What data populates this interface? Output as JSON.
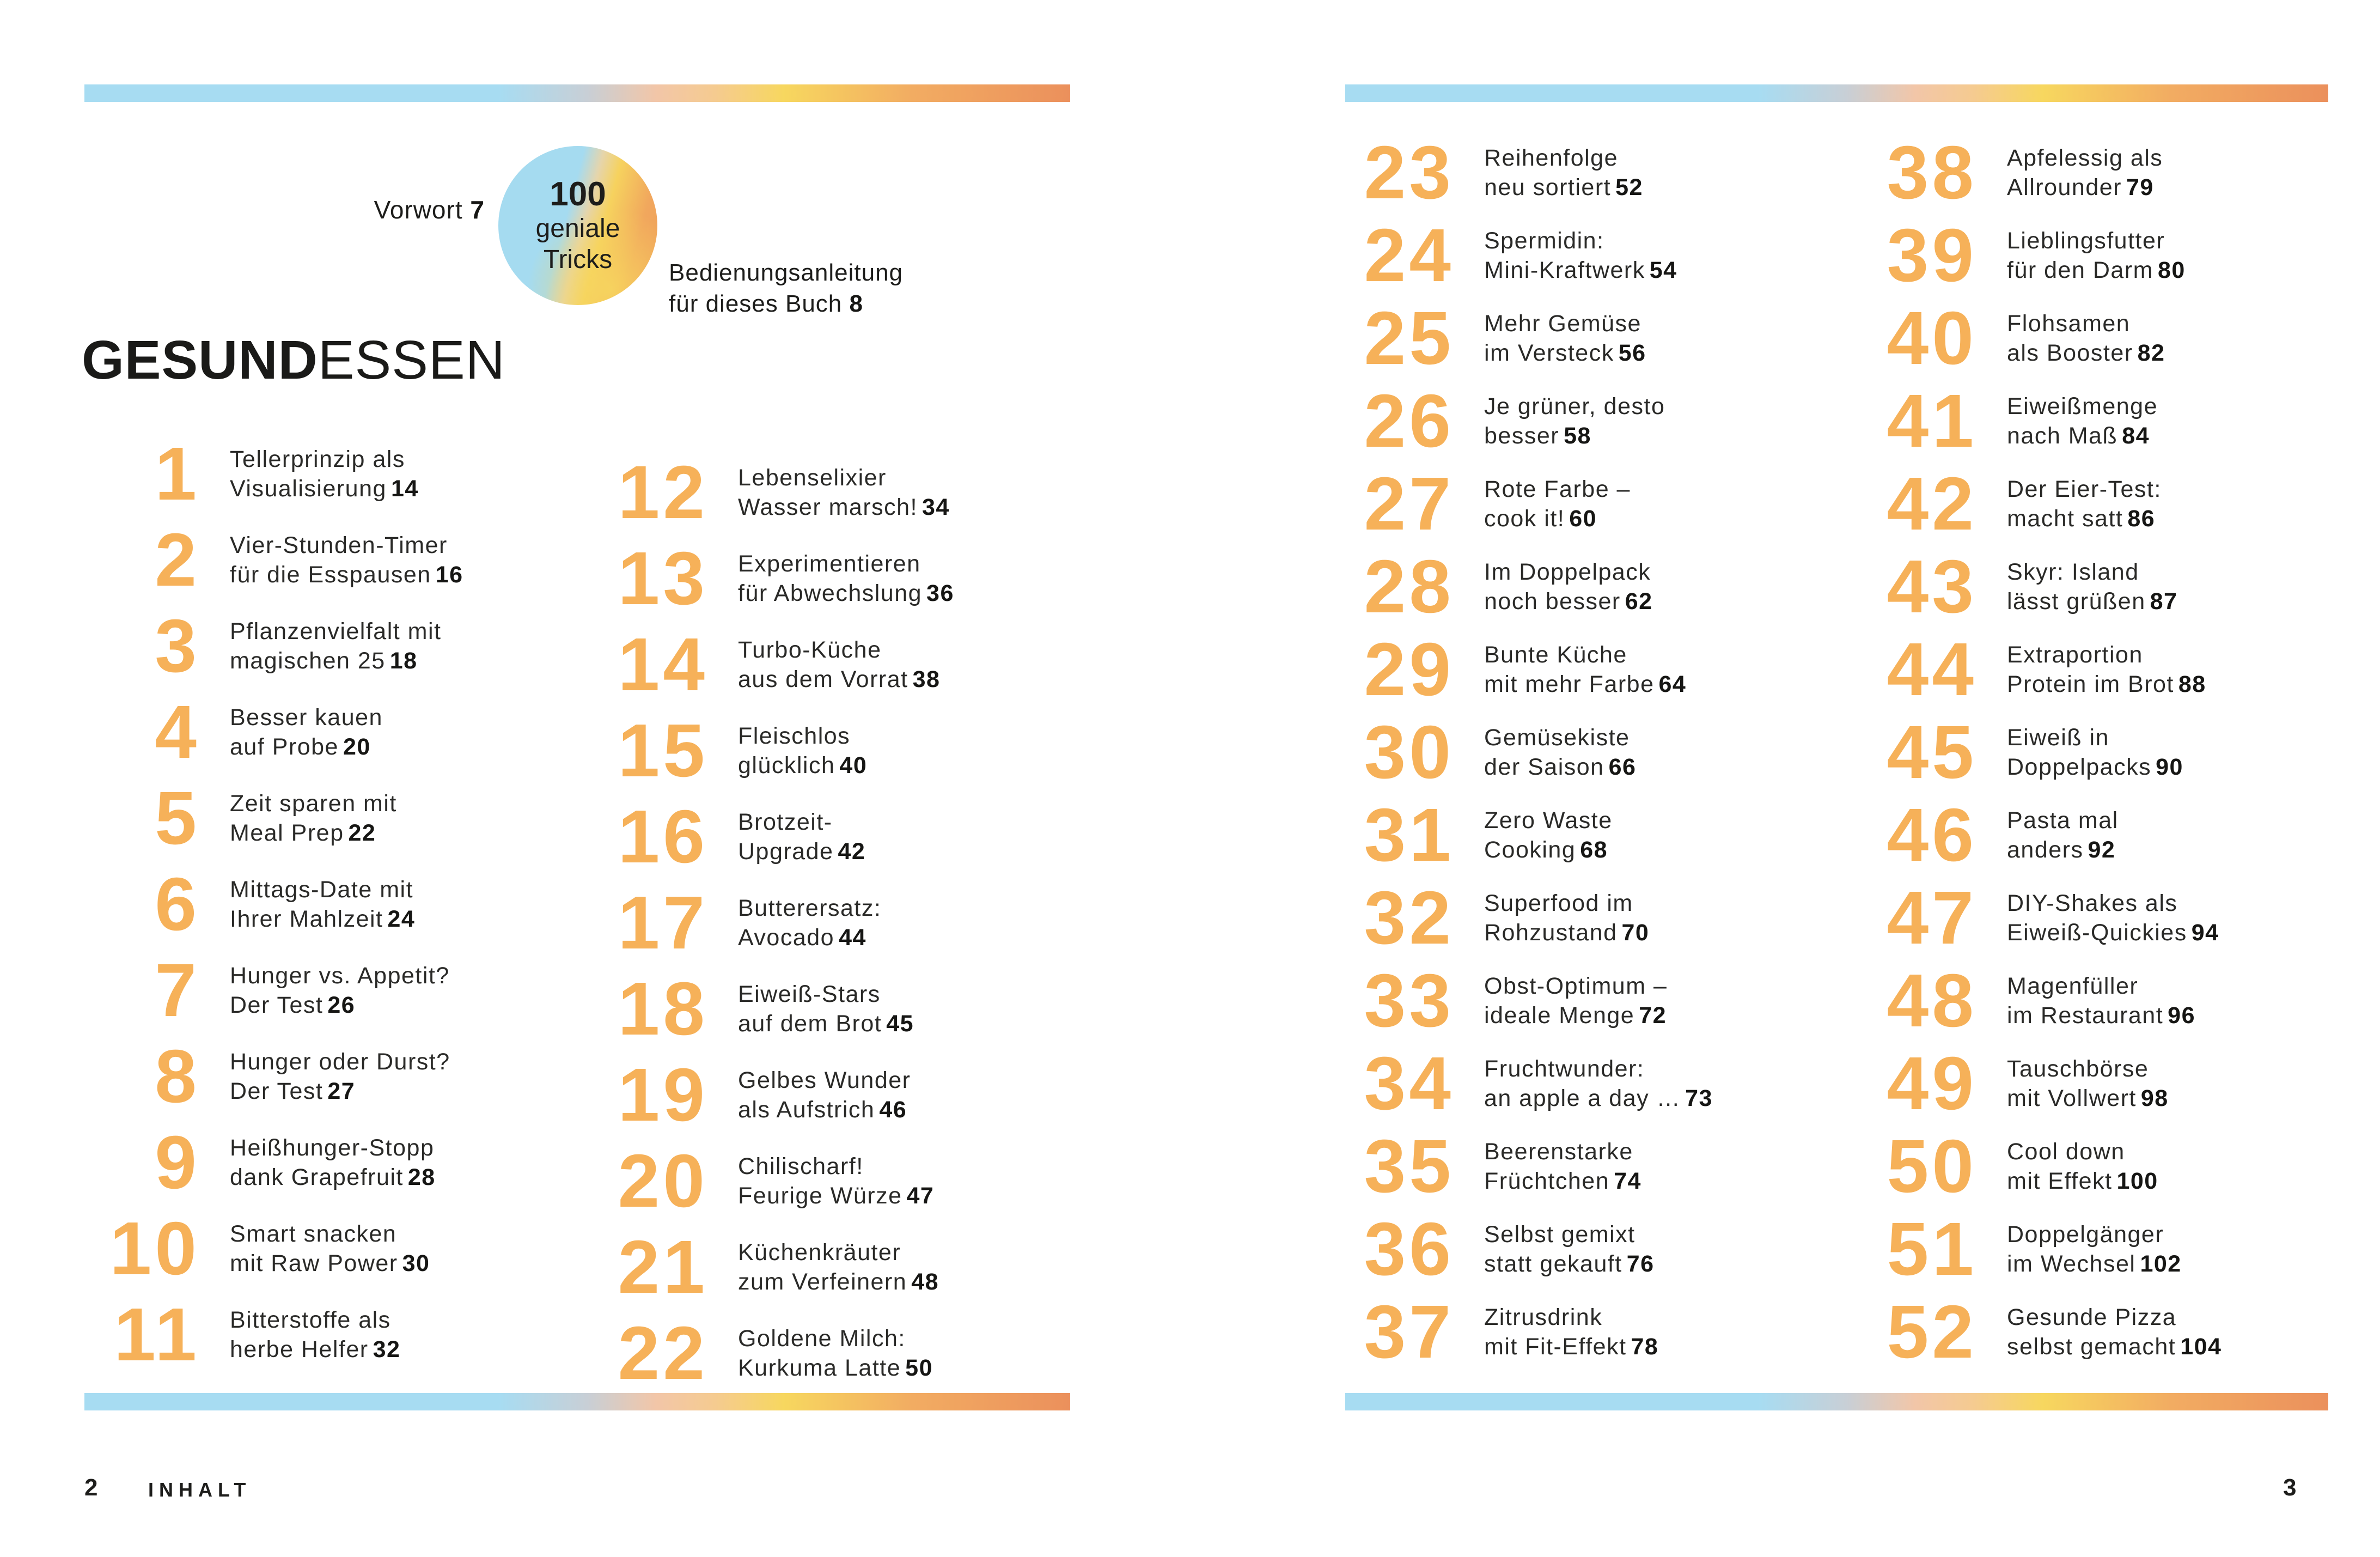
{
  "colors": {
    "accent_orange": "#F6B159",
    "body_text": "#2A2A28",
    "page_number_text": "#161614",
    "bar_blue": "#A7DCF2",
    "bar_yellow": "#F7D75F",
    "bar_orange": "#EB905C"
  },
  "left_page": {
    "vorwort_label": "Vorwort",
    "vorwort_page": "7",
    "badge_line1": "100",
    "badge_line2": "geniale",
    "badge_line3": "Tricks",
    "manual_line1": "Bedienungsanleitung",
    "manual_line2": "für dieses Buch",
    "manual_page": "8",
    "section_title_bold": "GESUND",
    "section_title_light": "ESSEN",
    "footer_page_number": "2",
    "footer_label": "INHALT"
  },
  "right_page": {
    "footer_page_number": "3"
  },
  "toc": {
    "left_col1": [
      {
        "num": "1",
        "line1": "Tellerprinzip als",
        "line2": "Visualisierung",
        "page": "14"
      },
      {
        "num": "2",
        "line1": "Vier-Stunden-Timer",
        "line2": "für die Esspausen",
        "page": "16"
      },
      {
        "num": "3",
        "line1": "Pflanzenvielfalt mit",
        "line2": "magischen 25",
        "page": "18"
      },
      {
        "num": "4",
        "line1": "Besser kauen",
        "line2": "auf Probe",
        "page": "20"
      },
      {
        "num": "5",
        "line1": "Zeit sparen mit",
        "line2": "Meal Prep",
        "page": "22"
      },
      {
        "num": "6",
        "line1": "Mittags-Date mit",
        "line2": "Ihrer Mahlzeit",
        "page": "24"
      },
      {
        "num": "7",
        "line1": "Hunger vs. Appetit?",
        "line2": "Der Test",
        "page": "26"
      },
      {
        "num": "8",
        "line1": "Hunger oder Durst?",
        "line2": "Der Test",
        "page": "27"
      },
      {
        "num": "9",
        "line1": "Heißhunger-Stopp",
        "line2": "dank Grapefruit",
        "page": "28"
      },
      {
        "num": "10",
        "line1": "Smart snacken",
        "line2": "mit Raw Power",
        "page": "30"
      },
      {
        "num": "11",
        "line1": "Bitterstoffe als",
        "line2": "herbe Helfer",
        "page": "32"
      }
    ],
    "left_col2": [
      {
        "num": "12",
        "line1": "Lebenselixier",
        "line2": "Wasser marsch!",
        "page": "34"
      },
      {
        "num": "13",
        "line1": "Experimentieren",
        "line2": "für Abwechslung",
        "page": "36"
      },
      {
        "num": "14",
        "line1": "Turbo-Küche",
        "line2": "aus dem Vorrat",
        "page": "38"
      },
      {
        "num": "15",
        "line1": "Fleischlos",
        "line2": "glücklich",
        "page": "40"
      },
      {
        "num": "16",
        "line1": "Brotzeit-",
        "line2": "Upgrade",
        "page": "42"
      },
      {
        "num": "17",
        "line1": "Butterersatz:",
        "line2": "Avocado",
        "page": "44"
      },
      {
        "num": "18",
        "line1": "Eiweiß-Stars",
        "line2": "auf dem Brot",
        "page": "45"
      },
      {
        "num": "19",
        "line1": "Gelbes Wunder",
        "line2": "als Aufstrich",
        "page": "46"
      },
      {
        "num": "20",
        "line1": "Chilischarf!",
        "line2": "Feurige Würze",
        "page": "47"
      },
      {
        "num": "21",
        "line1": "Küchenkräuter",
        "line2": "zum Verfeinern",
        "page": "48"
      },
      {
        "num": "22",
        "line1": "Goldene Milch:",
        "line2": "Kurkuma Latte",
        "page": "50"
      }
    ],
    "right_col1": [
      {
        "num": "23",
        "line1": "Reihenfolge",
        "line2": "neu sortiert",
        "page": "52"
      },
      {
        "num": "24",
        "line1": "Spermidin:",
        "line2": "Mini-Kraftwerk",
        "page": "54"
      },
      {
        "num": "25",
        "line1": "Mehr Gemüse",
        "line2": "im Versteck",
        "page": "56"
      },
      {
        "num": "26",
        "line1": "Je grüner, desto",
        "line2": "besser",
        "page": "58"
      },
      {
        "num": "27",
        "line1": "Rote Farbe –",
        "line2": "cook it!",
        "page": "60"
      },
      {
        "num": "28",
        "line1": "Im Doppelpack",
        "line2": "noch besser",
        "page": "62"
      },
      {
        "num": "29",
        "line1": "Bunte Küche",
        "line2": "mit mehr Farbe",
        "page": "64"
      },
      {
        "num": "30",
        "line1": "Gemüsekiste",
        "line2": "der Saison",
        "page": "66"
      },
      {
        "num": "31",
        "line1": "Zero Waste",
        "line2": "Cooking",
        "page": "68"
      },
      {
        "num": "32",
        "line1": "Superfood im",
        "line2": "Rohzustand",
        "page": "70"
      },
      {
        "num": "33",
        "line1": "Obst-Optimum –",
        "line2": "ideale Menge",
        "page": "72"
      },
      {
        "num": "34",
        "line1": "Fruchtwunder:",
        "line2": "an apple a day …",
        "page": "73"
      },
      {
        "num": "35",
        "line1": "Beerenstarke",
        "line2": "Früchtchen",
        "page": "74"
      },
      {
        "num": "36",
        "line1": "Selbst gemixt",
        "line2": "statt gekauft",
        "page": "76"
      },
      {
        "num": "37",
        "line1": "Zitrusdrink",
        "line2": "mit Fit-Effekt",
        "page": "78"
      }
    ],
    "right_col2": [
      {
        "num": "38",
        "line1": "Apfelessig als",
        "line2": "Allrounder",
        "page": "79"
      },
      {
        "num": "39",
        "line1": "Lieblingsfutter",
        "line2": "für den Darm",
        "page": "80"
      },
      {
        "num": "40",
        "line1": "Flohsamen",
        "line2": "als Booster",
        "page": "82"
      },
      {
        "num": "41",
        "line1": "Eiweißmenge",
        "line2": "nach Maß",
        "page": "84"
      },
      {
        "num": "42",
        "line1": "Der Eier-Test:",
        "line2": "macht satt",
        "page": "86"
      },
      {
        "num": "43",
        "line1": "Skyr: Island",
        "line2": "lässt grüßen",
        "page": "87"
      },
      {
        "num": "44",
        "line1": "Extraportion",
        "line2": "Protein im Brot",
        "page": "88"
      },
      {
        "num": "45",
        "line1": "Eiweiß in",
        "line2": "Doppelpacks",
        "page": "90"
      },
      {
        "num": "46",
        "line1": "Pasta mal",
        "line2": "anders",
        "page": "92"
      },
      {
        "num": "47",
        "line1": "DIY-Shakes als",
        "line2": "Eiweiß-Quickies",
        "page": "94"
      },
      {
        "num": "48",
        "line1": "Magenfüller",
        "line2": "im Restaurant",
        "page": "96"
      },
      {
        "num": "49",
        "line1": "Tauschbörse",
        "line2": "mit Vollwert",
        "page": "98"
      },
      {
        "num": "50",
        "line1": "Cool down",
        "line2": "mit Effekt",
        "page": "100"
      },
      {
        "num": "51",
        "line1": "Doppelgänger",
        "line2": "im Wechsel",
        "page": "102"
      },
      {
        "num": "52",
        "line1": "Gesunde Pizza",
        "line2": "selbst gemacht",
        "page": "104"
      }
    ]
  }
}
